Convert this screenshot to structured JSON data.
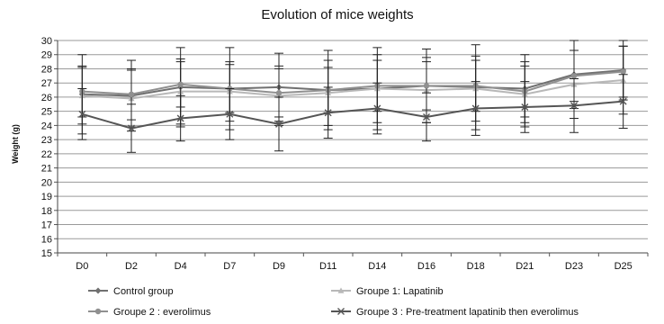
{
  "chart_data": {
    "type": "line",
    "title": "Evolution of mice weights",
    "xlabel": "",
    "ylabel": "Weight (g)",
    "ylim": [
      15,
      30
    ],
    "yticks": [
      15,
      16,
      17,
      18,
      19,
      20,
      21,
      22,
      23,
      24,
      25,
      26,
      27,
      28,
      29,
      30
    ],
    "grid": true,
    "legend_position": "bottom",
    "categories": [
      "D0",
      "D2",
      "D4",
      "D7",
      "D9",
      "D11",
      "D14",
      "D16",
      "D18",
      "D21",
      "D23",
      "D25"
    ],
    "series": [
      {
        "name": "Control group",
        "color": "#707070",
        "marker": "diamond",
        "values": [
          26.2,
          26.1,
          26.7,
          26.6,
          26.7,
          26.5,
          26.6,
          26.8,
          26.7,
          26.6,
          27.6,
          27.9
        ],
        "error": [
          2.8,
          2.5,
          2.8,
          2.9,
          2.4,
          2.8,
          2.9,
          2.6,
          3.0,
          2.4,
          2.4,
          2.1
        ]
      },
      {
        "name": "Groupe 1: Lapatinib",
        "color": "#b8b8b8",
        "marker": "triangle",
        "values": [
          26.1,
          25.9,
          26.4,
          26.4,
          26.1,
          26.3,
          26.6,
          26.5,
          26.6,
          26.2,
          26.9,
          27.2
        ],
        "error": [
          2.0,
          2.0,
          2.3,
          2.1,
          2.1,
          2.3,
          2.4,
          2.3,
          2.3,
          2.3,
          2.4,
          2.4
        ]
      },
      {
        "name": "Groupe 2 : everolimus",
        "color": "#909090",
        "marker": "circle",
        "values": [
          26.4,
          26.2,
          26.9,
          26.6,
          26.3,
          26.5,
          26.8,
          26.8,
          26.8,
          26.4,
          27.5,
          27.8
        ],
        "error": [
          1.8,
          1.8,
          1.6,
          1.7,
          1.7,
          1.6,
          1.8,
          1.7,
          1.8,
          1.8,
          1.8,
          1.8
        ]
      },
      {
        "name": "Groupe 3 : Pre-treatment lapatinib then everolimus",
        "color": "#555555",
        "marker": "cross",
        "values": [
          24.8,
          23.8,
          24.5,
          24.8,
          24.1,
          24.9,
          25.2,
          24.6,
          25.2,
          25.3,
          25.4,
          25.7
        ],
        "error": [
          1.8,
          1.7,
          1.6,
          1.8,
          1.9,
          1.8,
          1.8,
          1.7,
          1.9,
          1.8,
          1.9,
          1.9
        ]
      }
    ]
  }
}
